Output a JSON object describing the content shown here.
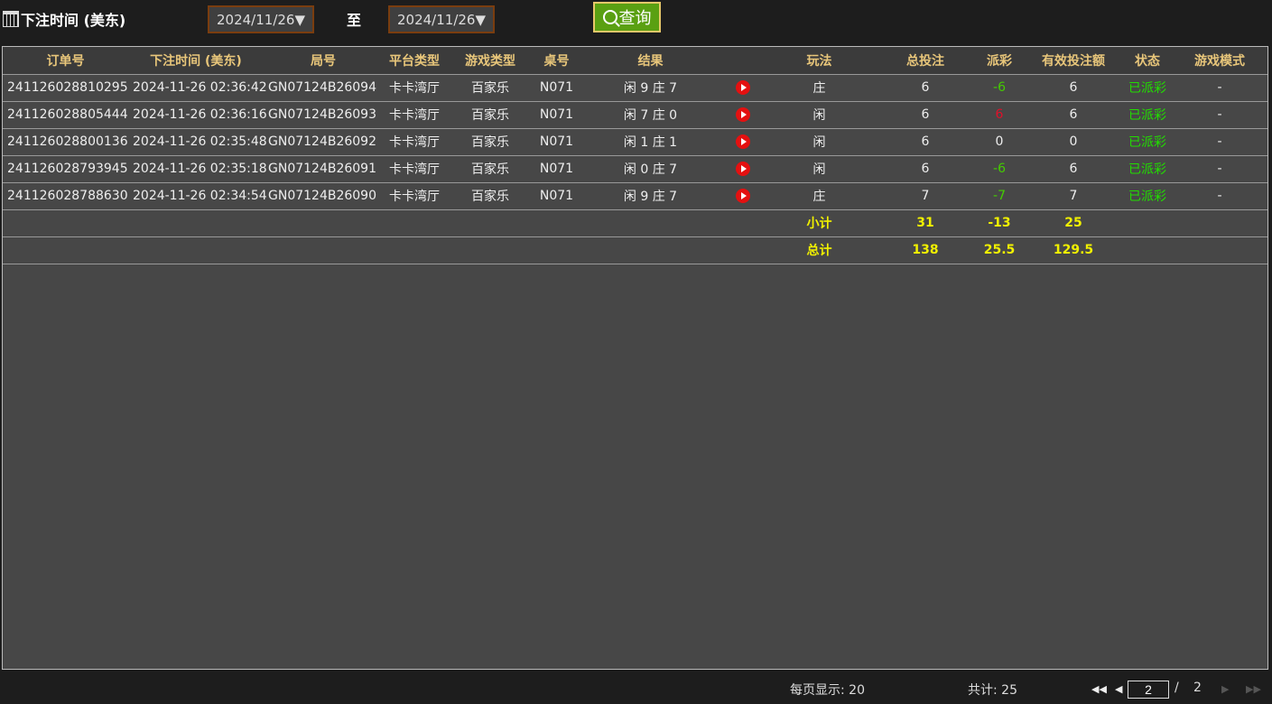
{
  "filter": {
    "label": "下注时间 (美东)",
    "start": "2024/11/26▼",
    "to": "至",
    "end": "2024/11/26▼",
    "query": "查询"
  },
  "headers": [
    "订单号",
    "下注时间 (美东)",
    "局号",
    "平台类型",
    "游戏类型",
    "桌号",
    "结果",
    "",
    "玩法",
    "总投注",
    "派彩",
    "有效投注额",
    "状态",
    "游戏模式"
  ],
  "rows": [
    {
      "order": "241126028810295",
      "time": "2024-11-26 02:36:42",
      "round": "GN07124B26094",
      "platform": "卡卡湾厅",
      "game": "百家乐",
      "table": "N071",
      "result": "闲 9 庄 7",
      "bet_type": "庄",
      "total": "6",
      "payout": "-6",
      "payout_color": "#44cc00",
      "valid": "6",
      "status": "已派彩",
      "mode": "-"
    },
    {
      "order": "241126028805444",
      "time": "2024-11-26 02:36:16",
      "round": "GN07124B26093",
      "platform": "卡卡湾厅",
      "game": "百家乐",
      "table": "N071",
      "result": "闲 7 庄 0",
      "bet_type": "闲",
      "total": "6",
      "payout": "6",
      "payout_color": "#e0102a",
      "valid": "6",
      "status": "已派彩",
      "mode": "-"
    },
    {
      "order": "241126028800136",
      "time": "2024-11-26 02:35:48",
      "round": "GN07124B26092",
      "platform": "卡卡湾厅",
      "game": "百家乐",
      "table": "N071",
      "result": "闲 1 庄 1",
      "bet_type": "闲",
      "total": "6",
      "payout": "0",
      "payout_color": "#eeeeee",
      "valid": "0",
      "status": "已派彩",
      "mode": "-"
    },
    {
      "order": "241126028793945",
      "time": "2024-11-26 02:35:18",
      "round": "GN07124B26091",
      "platform": "卡卡湾厅",
      "game": "百家乐",
      "table": "N071",
      "result": "闲 0 庄 7",
      "bet_type": "闲",
      "total": "6",
      "payout": "-6",
      "payout_color": "#44cc00",
      "valid": "6",
      "status": "已派彩",
      "mode": "-"
    },
    {
      "order": "241126028788630",
      "time": "2024-11-26 02:34:54",
      "round": "GN07124B26090",
      "platform": "卡卡湾厅",
      "game": "百家乐",
      "table": "N071",
      "result": "闲 9 庄 7",
      "bet_type": "庄",
      "total": "7",
      "payout": "-7",
      "payout_color": "#44cc00",
      "valid": "7",
      "status": "已派彩",
      "mode": "-"
    }
  ],
  "subtotal": {
    "label": "小计",
    "total": "31",
    "payout": "-13",
    "valid": "25"
  },
  "grandtotal": {
    "label": "总计",
    "total": "138",
    "payout": "25.5",
    "valid": "129.5"
  },
  "footer": {
    "per_page": "每页显示: 20",
    "count": "共计: 25",
    "page": "2",
    "sep": "/",
    "pages": "2"
  },
  "colors": {
    "status": "#22dd00",
    "header_text": "#e8c67a",
    "sum_text": "#f0f000",
    "query_bg": "#5aa012"
  }
}
